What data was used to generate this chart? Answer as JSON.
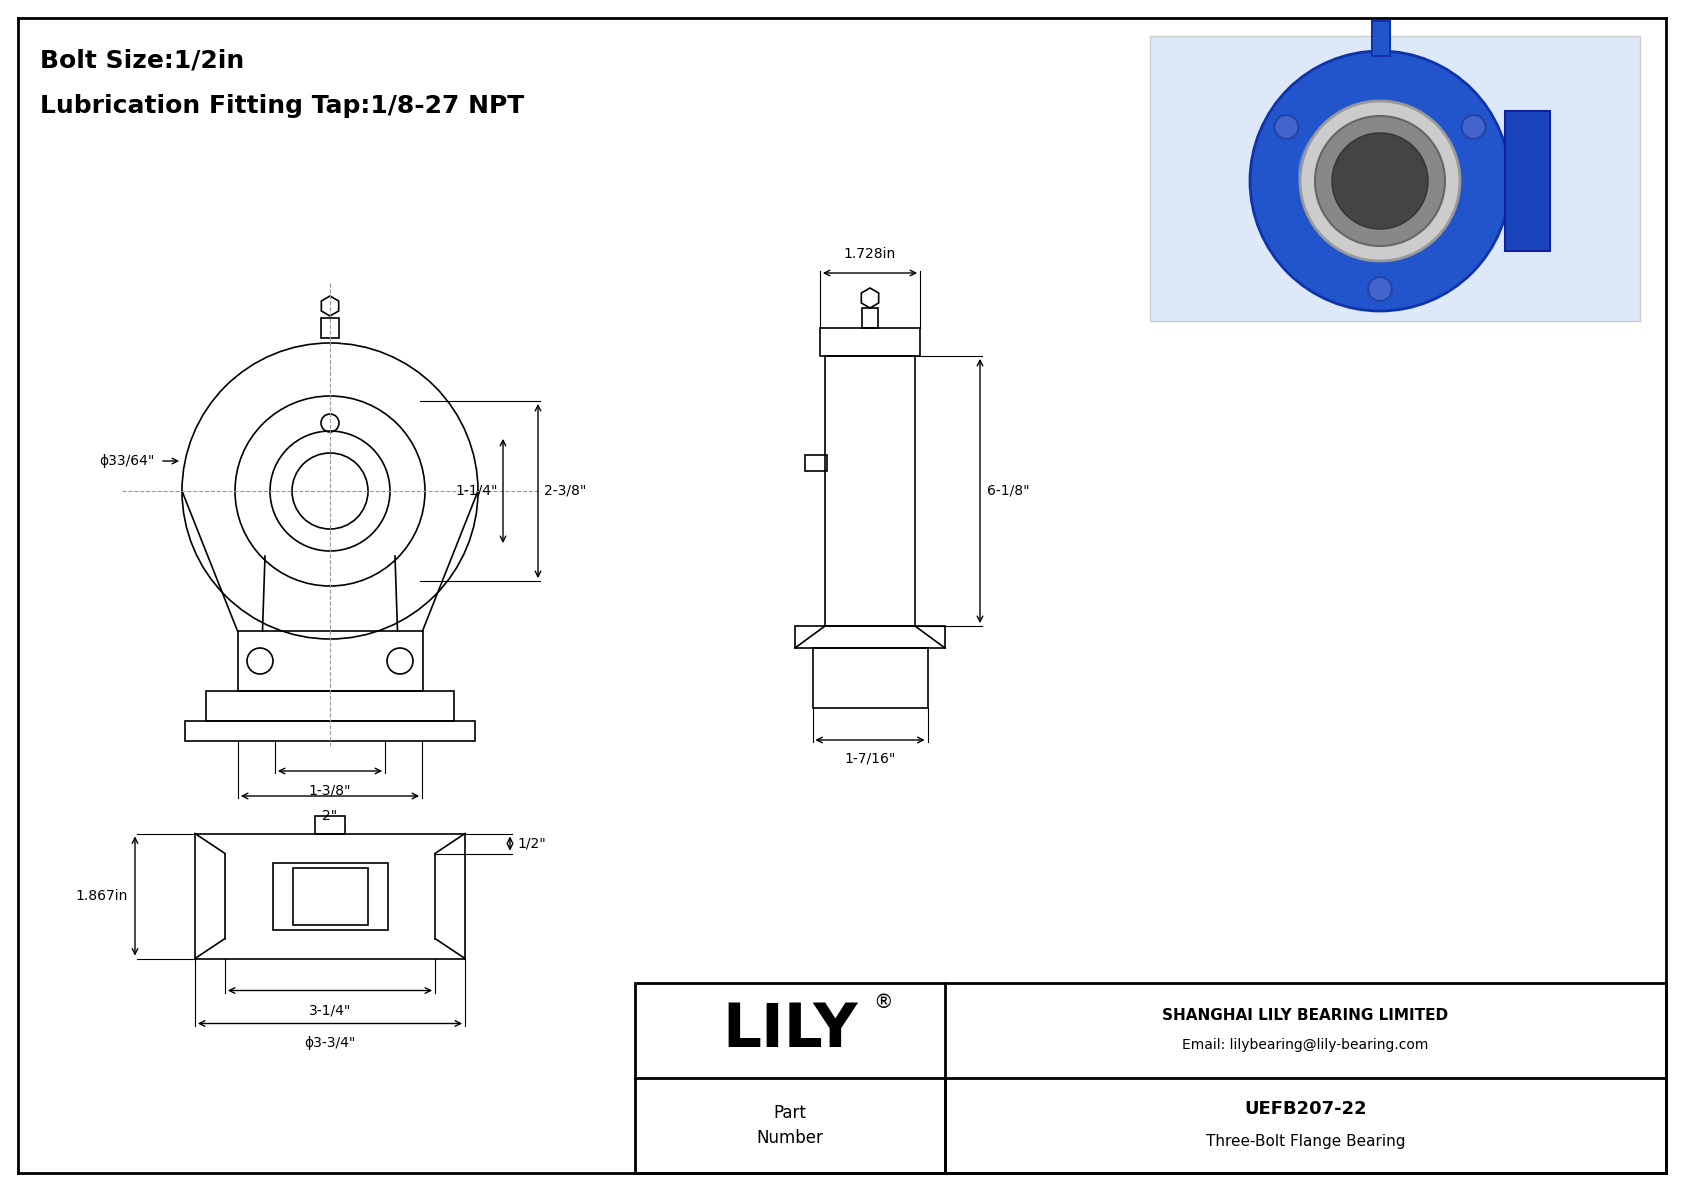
{
  "title_line1": "Bolt Size:1/2in",
  "title_line2": "Lubrication Fitting Tap:1/8-27 NPT",
  "bg_color": "#ffffff",
  "line_color": "#000000",
  "dim_color": "#000000",
  "company": "LILY",
  "company_reg": "®",
  "company_full": "SHANGHAI LILY BEARING LIMITED",
  "email": "Email: lilybearing@lily-bearing.com",
  "part_number_label": "Part\nNumber",
  "part_number": "UEFB207-22",
  "part_type": "Three-Bolt Flange Bearing",
  "phi": "ϕ",
  "dims": {
    "bolt_dia": "33/64\"",
    "width_top": "1.728in",
    "height_right": "6-1/8\"",
    "dim_2_3_8": "2-3/8\"",
    "dim_1_1_4": "1-1/4\"",
    "dim_1_3_8": "1-3/8\"",
    "dim_2": "2\"",
    "dim_1_7_16": "1-7/16\"",
    "dim_1_2": "1/2\"",
    "dim_1_867": "1.867in",
    "dim_3_1_4": "3-1/4\"",
    "dim_3_3_4": "3-3/4\""
  }
}
